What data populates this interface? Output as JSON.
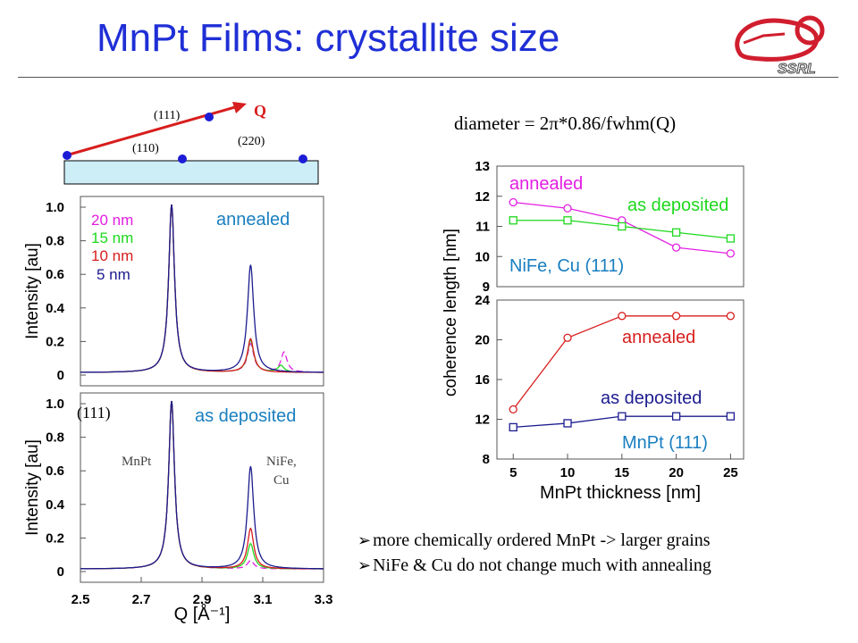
{
  "slide": {
    "title": "MnPt Films: crystallite size",
    "logo_text": "SSRL",
    "formula": "diameter = 2π*0.86/fwhm(Q)",
    "bullets": [
      "more chemically ordered MnPt -> larger grains",
      "NiFe & Cu do not change much with annealing"
    ]
  },
  "schematic": {
    "q_label": "Q",
    "labels": [
      "(111)",
      "(110)",
      "(220)"
    ]
  },
  "colors": {
    "title": "#1f2fd6",
    "navy": "#1c1c8f",
    "red": "#d81e1e",
    "green": "#1ed81e",
    "magenta": "#e21ee2",
    "teal_label": "#1a7fc0",
    "substrate": "#cdeef7"
  },
  "chart_data": [
    {
      "type": "line",
      "title": "annealed",
      "ylabel": "Intensity [au]",
      "xlabel": "",
      "xlim": [
        2.5,
        3.3
      ],
      "ylim": [
        0,
        1.0
      ],
      "yticks": [
        "1.0",
        "0.8",
        "0.6",
        "0.4",
        "0.2",
        "0"
      ],
      "series": [
        {
          "name": "20 nm",
          "color": "#e21ee2",
          "dashed": true,
          "peak111": 1.0,
          "peak2": 0.17,
          "x2": 3.06,
          "extra_peak": {
            "x": 3.17,
            "h": 0.12
          }
        },
        {
          "name": "15 nm",
          "color": "#1ed81e",
          "peak111": 1.0,
          "peak2": 0.19,
          "x2": 3.06,
          "extra_peak": {
            "x": 3.16,
            "h": 0.04
          }
        },
        {
          "name": "10 nm",
          "color": "#d81e1e",
          "peak111": 1.0,
          "peak2": 0.2,
          "x2": 3.06
        },
        {
          "name": "5 nm",
          "color": "#1c1c8f",
          "peak111": 1.0,
          "peak2": 0.64,
          "x2": 3.06
        }
      ]
    },
    {
      "type": "line",
      "title": "as deposited",
      "ylabel": "Intensity [au]",
      "xlabel": "Q [Å⁻¹]",
      "xlim": [
        2.5,
        3.3
      ],
      "ylim": [
        0,
        1.0
      ],
      "yticks": [
        "1.0",
        "0.8",
        "0.6",
        "0.4",
        "0.2",
        "0"
      ],
      "xticks": [
        "2.5",
        "2.7",
        "2.9",
        "3.1",
        "3.3"
      ],
      "annotations": {
        "corner": "(111)",
        "peak1": "MnPt",
        "peak2_line1": "NiFe,",
        "peak2_line2": "Cu"
      },
      "series": [
        {
          "name": "20 nm",
          "color": "#e21ee2",
          "dashed": true,
          "peak111": 1.0,
          "peak2": 0.05,
          "x2": 3.06
        },
        {
          "name": "15 nm",
          "color": "#1ed81e",
          "peak111": 1.0,
          "peak2": 0.15,
          "x2": 3.06
        },
        {
          "name": "10 nm",
          "color": "#d81e1e",
          "peak111": 1.0,
          "peak2": 0.24,
          "x2": 3.06
        },
        {
          "name": "5 nm",
          "color": "#1c1c8f",
          "peak111": 1.0,
          "peak2": 0.61,
          "x2": 3.06
        }
      ]
    },
    {
      "type": "line",
      "title": "NiFe, Cu (111)",
      "ylabel": "coherence length [nm]",
      "xlim": [
        3.5,
        26.2
      ],
      "ylim": [
        9,
        13
      ],
      "yticks": [
        "13",
        "12",
        "11",
        "10",
        "9"
      ],
      "x": [
        5,
        10,
        15,
        20,
        25
      ],
      "series": [
        {
          "name": "annealed",
          "color": "#e21ee2",
          "marker": "circle",
          "values": [
            11.8,
            11.6,
            11.2,
            10.3,
            10.1
          ]
        },
        {
          "name": "as deposited",
          "color": "#1ed81e",
          "marker": "square",
          "values": [
            11.2,
            11.2,
            11.0,
            10.8,
            10.6
          ]
        }
      ]
    },
    {
      "type": "line",
      "title": "MnPt (111)",
      "ylabel": "coherence length [nm]",
      "xlabel": "MnPt thickness [nm]",
      "xlim": [
        3.5,
        26.2
      ],
      "ylim": [
        8,
        24
      ],
      "yticks": [
        "24",
        "20",
        "16",
        "12",
        "8"
      ],
      "xticks": [
        "5",
        "10",
        "15",
        "20",
        "25"
      ],
      "x": [
        5,
        10,
        15,
        20,
        25
      ],
      "series": [
        {
          "name": "annealed",
          "color": "#d81e1e",
          "marker": "circle",
          "values": [
            13.0,
            20.2,
            22.4,
            22.4,
            22.4
          ]
        },
        {
          "name": "as deposited",
          "color": "#1c1c8f",
          "marker": "square",
          "values": [
            11.2,
            11.6,
            12.3,
            12.3,
            12.3
          ]
        }
      ]
    }
  ]
}
